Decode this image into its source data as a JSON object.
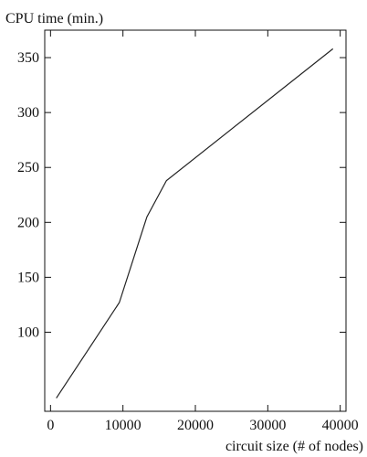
{
  "chart_data": {
    "type": "line",
    "ylabel": "CPU time (min.)",
    "xlabel": "circuit size (# of nodes)",
    "xlim": [
      -800,
      40800
    ],
    "ylim": [
      28,
      375
    ],
    "xticks": [
      0,
      10000,
      20000,
      30000,
      40000
    ],
    "yticks": [
      100,
      150,
      200,
      250,
      300,
      350
    ],
    "grid": false,
    "series": [
      {
        "x": [
          800,
          9500,
          13300,
          16000,
          39000
        ],
        "y": [
          40,
          127,
          205,
          238,
          358
        ]
      }
    ]
  }
}
